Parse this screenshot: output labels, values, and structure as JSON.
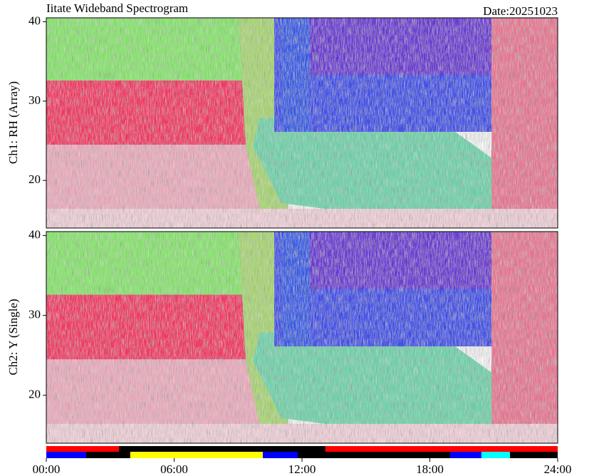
{
  "chart_data": [
    {
      "type": "spectrogram",
      "title": "Iitate Wideband Spectrogram",
      "date_label": "Date:20251023",
      "ylabel": "Ch1: RH (Array)",
      "ylim": [
        14,
        40.5
      ],
      "yticks": [
        20,
        30,
        40
      ]
    },
    {
      "type": "spectrogram",
      "ylabel": "Ch2: Y (Single)",
      "ylim": [
        14,
        40.5
      ],
      "yticks": [
        20,
        30,
        40
      ]
    },
    {
      "type": "timeline",
      "xlim": [
        0,
        24
      ],
      "xticks": [
        {
          "value": 0,
          "label": "00:00"
        },
        {
          "value": 6,
          "label": "06:00"
        },
        {
          "value": 12,
          "label": "12:00"
        },
        {
          "value": 18,
          "label": "18:00"
        },
        {
          "value": 24,
          "label": "24:00"
        }
      ],
      "rows": [
        {
          "segments": [
            {
              "start": 0,
              "end": 3.41,
              "color": "#ff0000"
            },
            {
              "start": 3.41,
              "end": 13.1,
              "color": "#000000"
            },
            {
              "start": 13.1,
              "end": 24,
              "color": "#ff0000"
            }
          ]
        },
        {
          "segments": [
            {
              "start": 0,
              "end": 1.87,
              "color": "#0000ff"
            },
            {
              "start": 1.87,
              "end": 3.94,
              "color": "#000000"
            },
            {
              "start": 3.94,
              "end": 10.16,
              "color": "#ffff00"
            },
            {
              "start": 10.16,
              "end": 11.8,
              "color": "#0000ff"
            },
            {
              "start": 11.8,
              "end": 18.95,
              "color": "#000000"
            },
            {
              "start": 18.95,
              "end": 20.42,
              "color": "#0000ff"
            },
            {
              "start": 20.42,
              "end": 21.76,
              "color": "#00ffff"
            },
            {
              "start": 21.76,
              "end": 24,
              "color": "#000000"
            }
          ]
        }
      ]
    }
  ]
}
